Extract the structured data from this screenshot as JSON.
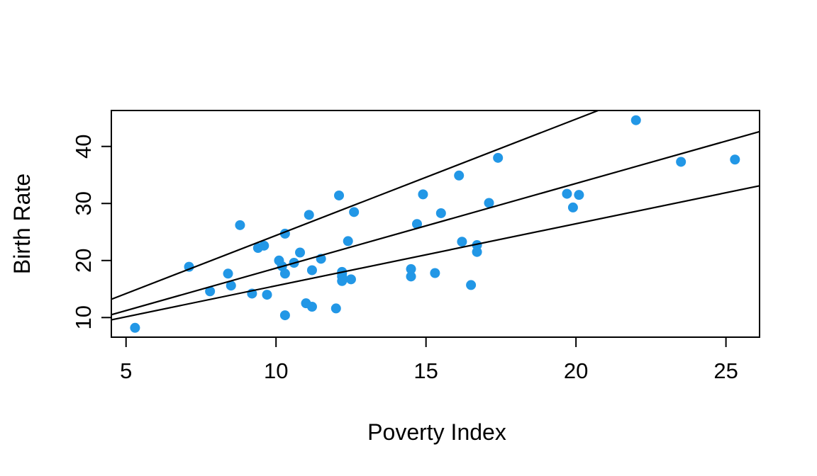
{
  "figure": {
    "background_color": "#FFFFFF",
    "point_color": "#2297E6",
    "line_color": "#000000"
  },
  "chart_data": {
    "type": "scatter",
    "title": "",
    "xlabel": "Poverty Index",
    "ylabel": "Birth Rate",
    "xlim": [
      4.51,
      26.12
    ],
    "ylim": [
      6.56,
      46.3
    ],
    "x_ticks": [
      5,
      10,
      15,
      20,
      25
    ],
    "y_ticks": [
      10,
      20,
      30,
      40
    ],
    "grid": false,
    "legend": false,
    "marker": "filled-circle",
    "points": [
      [
        5.3,
        8.2
      ],
      [
        7.1,
        18.9
      ],
      [
        7.8,
        14.6
      ],
      [
        8.4,
        17.7
      ],
      [
        8.5,
        15.6
      ],
      [
        8.8,
        26.2
      ],
      [
        9.2,
        14.2
      ],
      [
        9.4,
        22.2
      ],
      [
        9.6,
        22.6
      ],
      [
        9.7,
        14.0
      ],
      [
        10.1,
        20.0
      ],
      [
        10.2,
        19.0
      ],
      [
        10.3,
        17.7
      ],
      [
        10.3,
        24.7
      ],
      [
        10.3,
        10.4
      ],
      [
        10.6,
        19.6
      ],
      [
        10.8,
        21.4
      ],
      [
        11.0,
        12.5
      ],
      [
        11.1,
        28.0
      ],
      [
        11.2,
        11.9
      ],
      [
        11.2,
        18.3
      ],
      [
        11.5,
        20.3
      ],
      [
        12.0,
        11.6
      ],
      [
        12.1,
        31.4
      ],
      [
        12.2,
        16.4
      ],
      [
        12.2,
        17.2
      ],
      [
        12.2,
        17.7
      ],
      [
        12.2,
        18.0
      ],
      [
        12.4,
        23.4
      ],
      [
        12.5,
        16.7
      ],
      [
        12.6,
        28.5
      ],
      [
        14.5,
        17.2
      ],
      [
        14.5,
        18.5
      ],
      [
        14.7,
        26.4
      ],
      [
        14.9,
        31.6
      ],
      [
        15.3,
        17.8
      ],
      [
        15.5,
        28.3
      ],
      [
        16.1,
        34.9
      ],
      [
        16.2,
        23.3
      ],
      [
        16.5,
        15.7
      ],
      [
        16.7,
        21.5
      ],
      [
        16.7,
        22.7
      ],
      [
        17.1,
        30.1
      ],
      [
        17.4,
        38.0
      ],
      [
        19.7,
        31.7
      ],
      [
        19.9,
        29.3
      ],
      [
        20.1,
        31.5
      ],
      [
        22.0,
        44.6
      ],
      [
        23.5,
        37.3
      ],
      [
        25.3,
        37.7
      ]
    ],
    "lines": [
      {
        "name": "upper-line",
        "x1": 4.51,
        "y1": 13.2,
        "x2": 20.74,
        "y2": 46.3
      },
      {
        "name": "middle-line",
        "x1": 4.51,
        "y1": 10.5,
        "x2": 26.12,
        "y2": 42.6
      },
      {
        "name": "lower-line",
        "x1": 4.51,
        "y1": 9.6,
        "x2": 26.12,
        "y2": 33.1
      }
    ]
  }
}
